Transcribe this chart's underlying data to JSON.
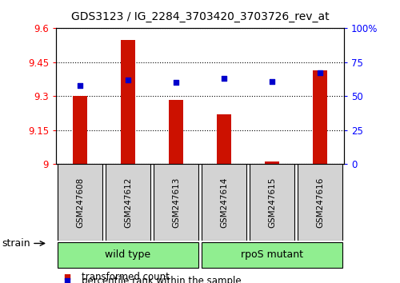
{
  "title": "GDS3123 / IG_2284_3703420_3703726_rev_at",
  "samples": [
    "GSM247608",
    "GSM247612",
    "GSM247613",
    "GSM247614",
    "GSM247615",
    "GSM247616"
  ],
  "transformed_count": [
    9.3,
    9.55,
    9.285,
    9.22,
    9.01,
    9.415
  ],
  "percentile_rank": [
    58,
    62,
    60,
    63,
    61,
    67
  ],
  "group_ranges": [
    [
      0,
      2
    ],
    [
      3,
      5
    ]
  ],
  "group_labels": [
    "wild type",
    "rpoS mutant"
  ],
  "group_color": "#90EE90",
  "sample_box_color": "#D3D3D3",
  "left_ylim": [
    9.0,
    9.6
  ],
  "left_yticks": [
    9.0,
    9.15,
    9.3,
    9.45,
    9.6
  ],
  "left_yticklabels": [
    "9",
    "9.15",
    "9.3",
    "9.45",
    "9.6"
  ],
  "right_ylim": [
    0,
    100
  ],
  "right_yticks": [
    0,
    25,
    50,
    75,
    100
  ],
  "right_yticklabels": [
    "0",
    "25",
    "50",
    "75",
    "100%"
  ],
  "bar_color": "#CC1100",
  "dot_color": "#0000CC",
  "bar_width": 0.3,
  "legend_items": [
    {
      "label": "transformed count",
      "color": "#CC1100"
    },
    {
      "label": "percentile rank within the sample",
      "color": "#0000CC"
    }
  ],
  "title_fontsize": 10,
  "tick_fontsize": 8.5,
  "sample_fontsize": 7.5,
  "legend_fontsize": 8.5,
  "group_fontsize": 9
}
